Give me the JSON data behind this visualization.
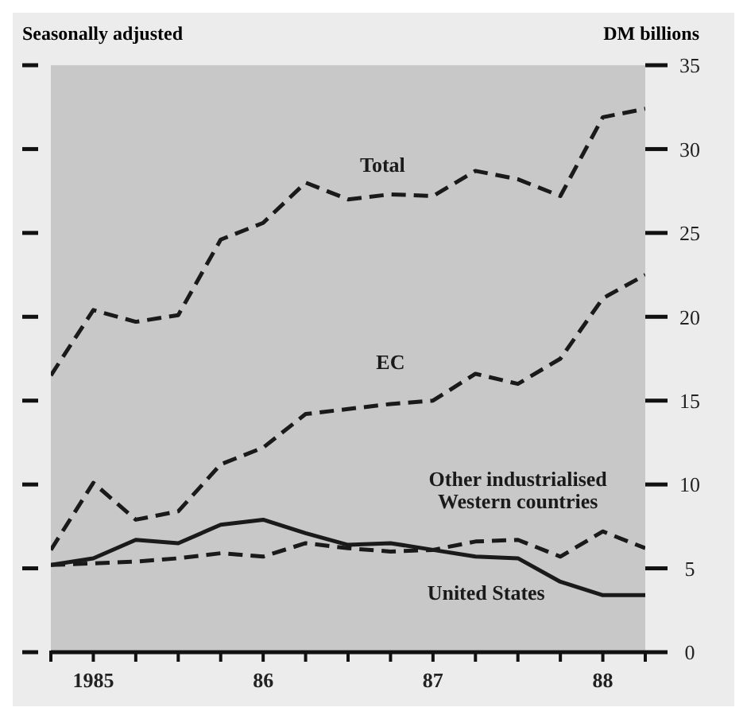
{
  "chart_data": {
    "type": "line",
    "subtitle": "Seasonally adjusted",
    "ylabel": "DM billions",
    "categories": [
      null,
      "1985",
      null,
      null,
      null,
      "86",
      null,
      null,
      null,
      "87",
      null,
      null,
      null,
      "88",
      null
    ],
    "series": [
      {
        "name": "Total",
        "color": "#1a1a1a",
        "line_style": "dashed",
        "values": [
          16.5,
          20.4,
          19.7,
          20.1,
          24.6,
          25.6,
          28.0,
          27.0,
          27.3,
          27.2,
          28.7,
          28.2,
          27.2,
          31.9,
          32.4
        ]
      },
      {
        "name": "EC",
        "color": "#1a1a1a",
        "line_style": "dashed",
        "values": [
          6.1,
          10.1,
          7.9,
          8.4,
          11.2,
          12.2,
          14.2,
          14.5,
          14.8,
          15.0,
          16.6,
          16.0,
          17.5,
          21.1,
          22.5
        ]
      },
      {
        "name": "Other industrialised Western countries",
        "color": "#1a1a1a",
        "line_style": "dashed",
        "values": [
          5.2,
          5.3,
          5.4,
          5.6,
          5.9,
          5.7,
          6.5,
          6.2,
          6.0,
          6.1,
          6.6,
          6.7,
          5.7,
          7.2,
          6.2
        ]
      },
      {
        "name": "United States",
        "color": "#1a1a1a",
        "line_style": "solid",
        "values": [
          5.2,
          5.6,
          6.7,
          6.5,
          7.6,
          7.9,
          7.1,
          6.4,
          6.5,
          6.1,
          5.7,
          5.6,
          4.2,
          3.4,
          3.4
        ]
      }
    ],
    "ylim": [
      0,
      35
    ],
    "yticks": [
      0,
      5,
      10,
      15,
      20,
      25,
      30,
      35
    ],
    "grid": false,
    "legend": false,
    "marker": "none"
  }
}
